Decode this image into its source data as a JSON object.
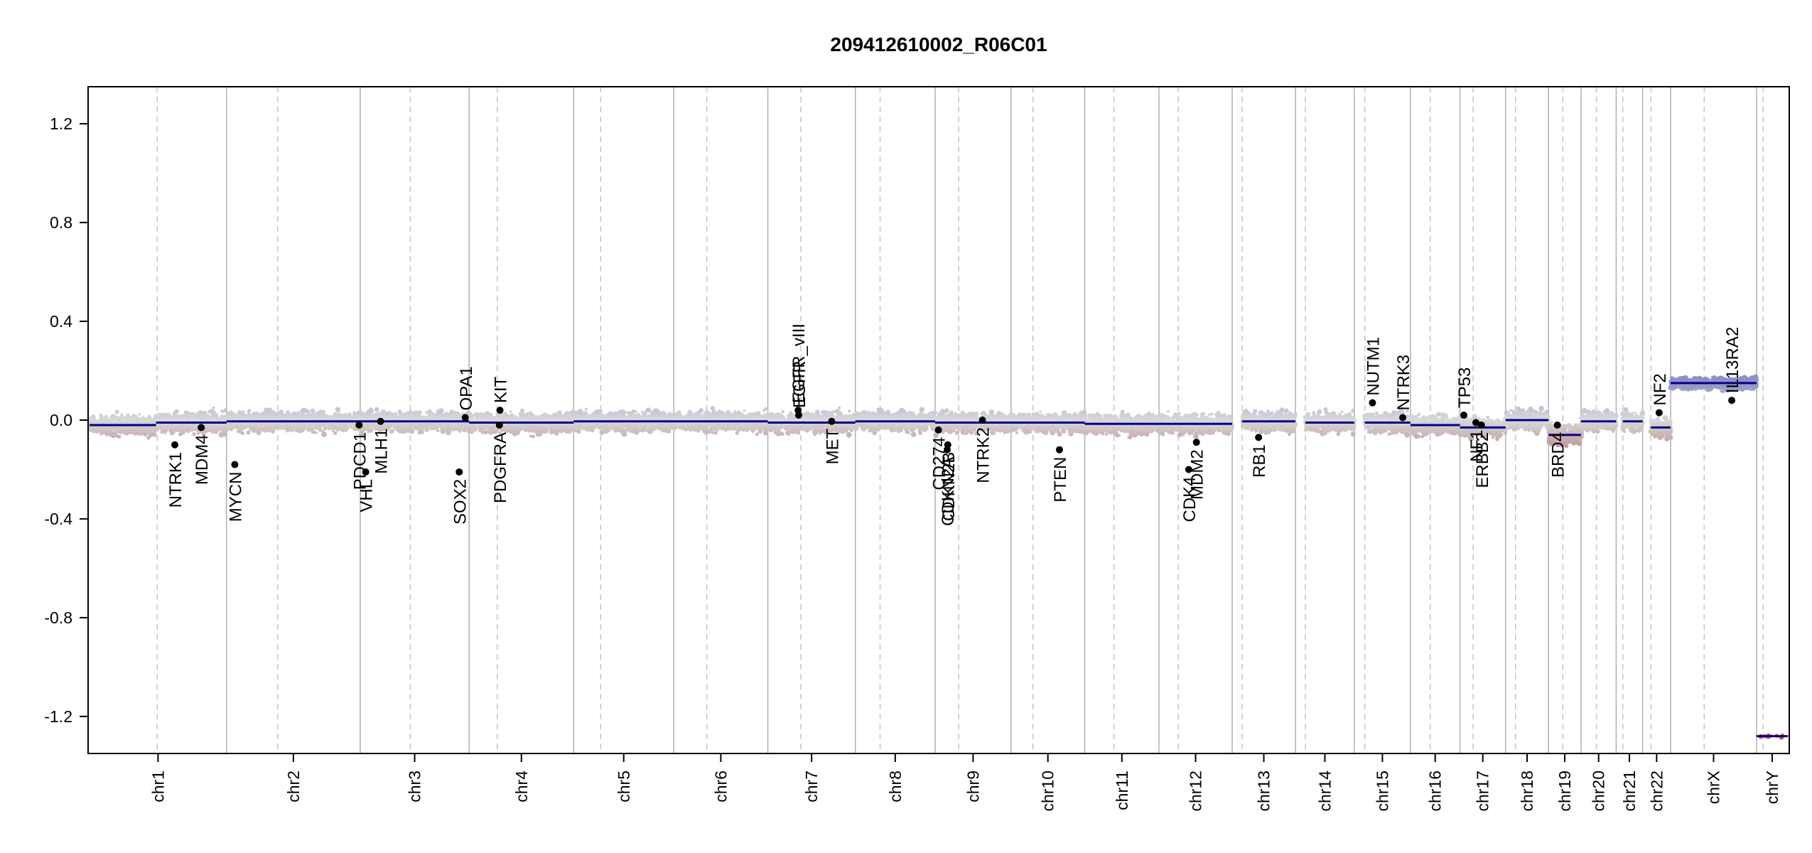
{
  "chart_data": {
    "type": "scatter",
    "title": "209412610002_R06C01",
    "xlabel": "",
    "ylabel": "",
    "ylim": [
      -1.35,
      1.35
    ],
    "y_ticks": [
      "1.2",
      "0.8",
      "0.4",
      "0.0",
      "-0.4",
      "-0.8",
      "-1.2"
    ],
    "y_tick_values": [
      1.2,
      0.8,
      0.4,
      0.0,
      -0.4,
      -0.8,
      -1.2
    ],
    "colors": {
      "gain": "#8f90c4",
      "loss": "#b27a7a",
      "neutral": "#d9d9d9",
      "segment": "#00008b",
      "dot": "#000000"
    },
    "chromosomes": [
      {
        "name": "chr1",
        "start": 0,
        "end": 249,
        "centromere": 123,
        "segments": [
          {
            "start": 0,
            "end": 121,
            "value": -0.02
          },
          {
            "start": 121,
            "end": 249,
            "value": -0.01
          }
        ]
      },
      {
        "name": "chr2",
        "start": 249,
        "end": 492,
        "centromere": 342,
        "segments": [
          {
            "start": 249,
            "end": 492,
            "value": -0.005
          }
        ]
      },
      {
        "name": "chr3",
        "start": 492,
        "end": 690,
        "centromere": 583,
        "segments": [
          {
            "start": 492,
            "end": 690,
            "value": -0.005
          }
        ]
      },
      {
        "name": "chr4",
        "start": 690,
        "end": 880,
        "centromere": 741,
        "segments": [
          {
            "start": 690,
            "end": 880,
            "value": -0.01
          }
        ]
      },
      {
        "name": "chr5",
        "start": 880,
        "end": 1062,
        "centromere": 929,
        "segments": [
          {
            "start": 880,
            "end": 1062,
            "value": -0.005
          }
        ]
      },
      {
        "name": "chr6",
        "start": 1062,
        "end": 1233,
        "centromere": 1122,
        "segments": [
          {
            "start": 1062,
            "end": 1233,
            "value": -0.005
          }
        ]
      },
      {
        "name": "chr7",
        "start": 1233,
        "end": 1392,
        "centromere": 1293,
        "segments": [
          {
            "start": 1233,
            "end": 1392,
            "value": -0.01
          }
        ]
      },
      {
        "name": "chr8",
        "start": 1392,
        "end": 1537,
        "centromere": 1437,
        "segments": [
          {
            "start": 1392,
            "end": 1537,
            "value": -0.005
          }
        ]
      },
      {
        "name": "chr9",
        "start": 1537,
        "end": 1675,
        "centromere": 1580,
        "segments": [
          {
            "start": 1537,
            "end": 1675,
            "value": -0.01
          }
        ]
      },
      {
        "name": "chr10",
        "start": 1675,
        "end": 1809,
        "centromere": 1715,
        "segments": [
          {
            "start": 1675,
            "end": 1809,
            "value": -0.01
          }
        ]
      },
      {
        "name": "chr11",
        "start": 1809,
        "end": 1944,
        "centromere": 1862,
        "segments": [
          {
            "start": 1809,
            "end": 1944,
            "value": -0.015
          }
        ]
      },
      {
        "name": "chr12",
        "start": 1944,
        "end": 2077,
        "centromere": 1979,
        "segments": [
          {
            "start": 1944,
            "end": 2077,
            "value": -0.015
          }
        ]
      },
      {
        "name": "chr13",
        "start": 2077,
        "end": 2192,
        "centromere": 2095,
        "segments": [
          {
            "start": 2095,
            "end": 2192,
            "value": -0.005
          }
        ]
      },
      {
        "name": "chr14",
        "start": 2192,
        "end": 2299,
        "centromere": 2210,
        "segments": [
          {
            "start": 2210,
            "end": 2299,
            "value": -0.01
          }
        ]
      },
      {
        "name": "chr15",
        "start": 2299,
        "end": 2401,
        "centromere": 2318,
        "segments": [
          {
            "start": 2318,
            "end": 2401,
            "value": -0.01
          }
        ]
      },
      {
        "name": "chr16",
        "start": 2401,
        "end": 2491,
        "centromere": 2437,
        "segments": [
          {
            "start": 2401,
            "end": 2491,
            "value": -0.02
          }
        ]
      },
      {
        "name": "chr17",
        "start": 2491,
        "end": 2574,
        "centromere": 2515,
        "segments": [
          {
            "start": 2491,
            "end": 2574,
            "value": -0.03
          }
        ]
      },
      {
        "name": "chr18",
        "start": 2574,
        "end": 2652,
        "centromere": 2592,
        "segments": [
          {
            "start": 2574,
            "end": 2652,
            "value": 0.0
          }
        ]
      },
      {
        "name": "chr19",
        "start": 2652,
        "end": 2711,
        "centromere": 2678,
        "segments": [
          {
            "start": 2652,
            "end": 2711,
            "value": -0.06
          }
        ]
      },
      {
        "name": "chr20",
        "start": 2711,
        "end": 2775,
        "centromere": 2739,
        "segments": [
          {
            "start": 2711,
            "end": 2775,
            "value": -0.005
          }
        ]
      },
      {
        "name": "chr21",
        "start": 2775,
        "end": 2823,
        "centromere": 2787,
        "segments": [
          {
            "start": 2787,
            "end": 2823,
            "value": -0.005
          }
        ]
      },
      {
        "name": "chr22",
        "start": 2823,
        "end": 2874,
        "centromere": 2838,
        "segments": [
          {
            "start": 2838,
            "end": 2874,
            "value": -0.03
          }
        ]
      },
      {
        "name": "chrX",
        "start": 2874,
        "end": 3030,
        "centromere": 2935,
        "segments": [
          {
            "start": 2874,
            "end": 3030,
            "value": 0.15
          }
        ]
      },
      {
        "name": "chrY",
        "start": 3030,
        "end": 3087,
        "centromere": 3042,
        "segments": [
          {
            "start": 3030,
            "end": 3087,
            "value": -1.28
          }
        ]
      }
    ],
    "genes": [
      {
        "name": "NTRK1",
        "pos": 155,
        "value": -0.1
      },
      {
        "name": "MDM4",
        "pos": 203,
        "value": -0.03
      },
      {
        "name": "MYCN",
        "pos": 264,
        "value": -0.18
      },
      {
        "name": "PDCD1",
        "pos": 490,
        "value": -0.02
      },
      {
        "name": "VHL",
        "pos": 502,
        "value": -0.21
      },
      {
        "name": "MLH1",
        "pos": 529,
        "value": -0.005
      },
      {
        "name": "SOX2",
        "pos": 672,
        "value": -0.21
      },
      {
        "name": "OPA1",
        "pos": 683,
        "value": 0.01
      },
      {
        "name": "PDGFRA",
        "pos": 745,
        "value": -0.02
      },
      {
        "name": "KIT",
        "pos": 746,
        "value": 0.04
      },
      {
        "name": "EGFR_vIII",
        "pos": 1288,
        "value": 0.04
      },
      {
        "name": "EGFR",
        "pos": 1289,
        "value": 0.02
      },
      {
        "name": "MET",
        "pos": 1349,
        "value": -0.005
      },
      {
        "name": "CD274",
        "pos": 1543,
        "value": -0.04
      },
      {
        "name": "CDKN2A",
        "pos": 1559,
        "value": -0.12
      },
      {
        "name": "CDKN2B",
        "pos": 1560,
        "value": -0.1
      },
      {
        "name": "NTRK2",
        "pos": 1623,
        "value": 0.0
      },
      {
        "name": "PTEN",
        "pos": 1763,
        "value": -0.12
      },
      {
        "name": "CDK4",
        "pos": 1998,
        "value": -0.2
      },
      {
        "name": "MDM2",
        "pos": 2012,
        "value": -0.09
      },
      {
        "name": "RB1",
        "pos": 2125,
        "value": -0.07
      },
      {
        "name": "NUTM1",
        "pos": 2332,
        "value": 0.07
      },
      {
        "name": "NTRK3",
        "pos": 2387,
        "value": 0.01
      },
      {
        "name": "TP53",
        "pos": 2498,
        "value": 0.02
      },
      {
        "name": "NF1",
        "pos": 2520,
        "value": -0.01
      },
      {
        "name": "ERBB2",
        "pos": 2530,
        "value": -0.02
      },
      {
        "name": "BRD4",
        "pos": 2668,
        "value": -0.02
      },
      {
        "name": "NF2",
        "pos": 2853,
        "value": 0.03
      },
      {
        "name": "IL13RA2",
        "pos": 2985,
        "value": 0.08
      }
    ]
  }
}
